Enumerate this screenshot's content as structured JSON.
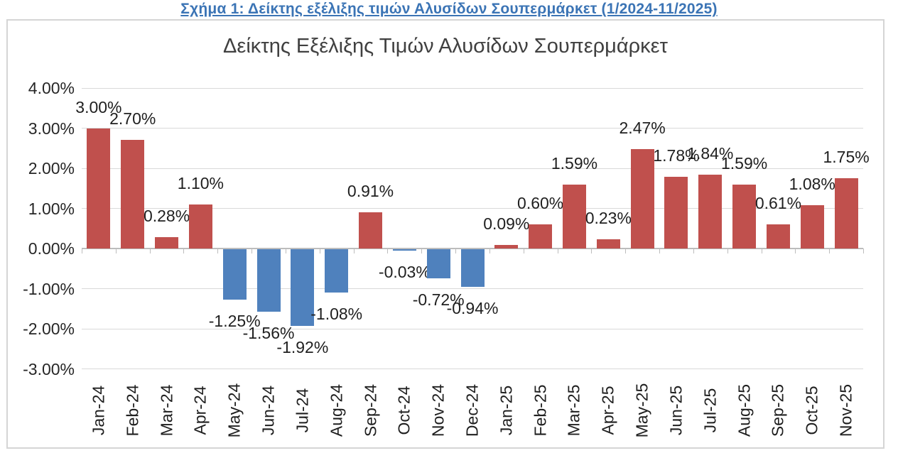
{
  "page": {
    "header_title": "Σχήμα 1: Δείκτης εξέλιξης τιμών Αλυσίδων Σουπερμάρκετ (1/2024-11/2025)"
  },
  "chart_data": {
    "type": "bar",
    "title": "Δείκτης Εξέλιξης Τιμών Αλυσίδων Σουπερμάρκετ",
    "categories": [
      "Jan-24",
      "Feb-24",
      "Mar-24",
      "Apr-24",
      "May-24",
      "Jun-24",
      "Jul-24",
      "Aug-24",
      "Sep-24",
      "Oct-24",
      "Nov-24",
      "Dec-24",
      "Jan-25",
      "Feb-25",
      "Mar-25",
      "Apr-25",
      "May-25",
      "Jun-25",
      "Jul-25",
      "Aug-25",
      "Sep-25",
      "Oct-25",
      "Nov-25"
    ],
    "values": [
      3.0,
      2.7,
      0.28,
      1.1,
      -1.25,
      -1.56,
      -1.92,
      -1.08,
      0.91,
      -0.03,
      -0.72,
      -0.94,
      0.09,
      0.6,
      1.59,
      0.23,
      2.47,
      1.78,
      1.84,
      1.59,
      0.61,
      1.08,
      1.75
    ],
    "data_labels": [
      "3.00%",
      "2.70%",
      "0.28%",
      "1.10%",
      "-1.25%",
      "-1.56%",
      "-1.92%",
      "-1.08%",
      "0.91%",
      "-0.03%",
      "-0.72%",
      "-0.94%",
      "0.09%",
      "0.60%",
      "1.59%",
      "0.23%",
      "2.47%",
      "1.78%",
      "1.84%",
      "1.59%",
      "0.61%",
      "1.08%",
      "1.75%"
    ],
    "yticks": [
      4,
      3,
      2,
      1,
      0,
      -1,
      -2,
      -3
    ],
    "ytick_labels": [
      "4.00%",
      "3.00%",
      "2.00%",
      "1.00%",
      "0.00%",
      "-1.00%",
      "-2.00%",
      "-3.00%"
    ],
    "ylim": [
      -3,
      4
    ],
    "xlabel": "",
    "ylabel": "",
    "grid": true,
    "legend": false,
    "label_position": "outside-end",
    "colors": {
      "bar_positive": "#C0504D",
      "bar_negative": "#4F81BD",
      "gridline": "#D9D9D9",
      "axis_line": "#BDBDBD",
      "title_text": "#404040",
      "header_text": "#3B74B5"
    }
  }
}
